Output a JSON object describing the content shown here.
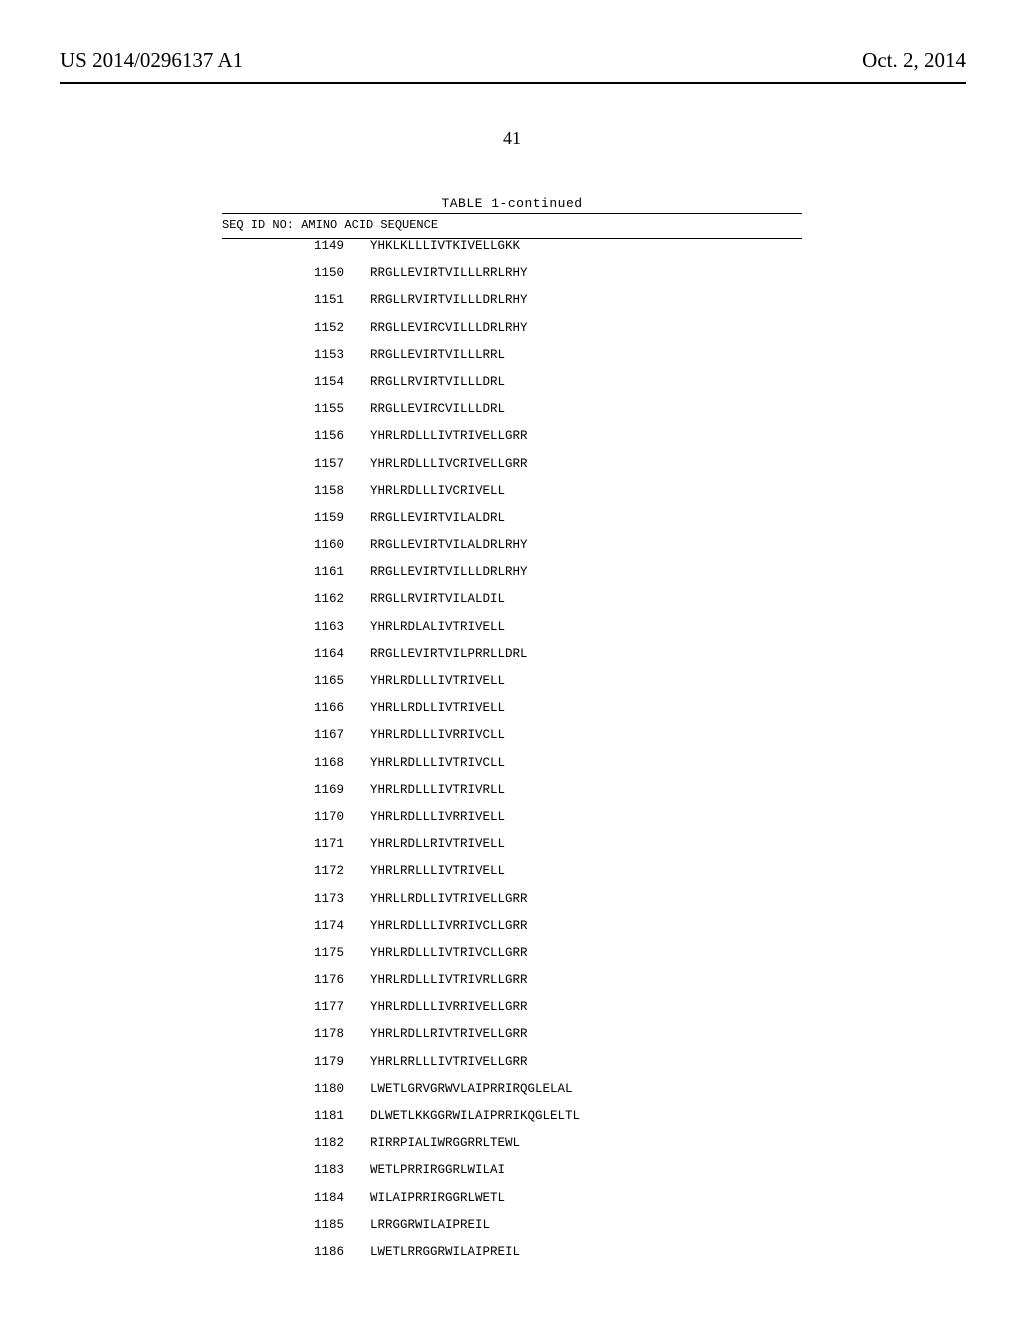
{
  "header": {
    "pub_number": "US 2014/0296137 A1",
    "pub_date": "Oct. 2, 2014"
  },
  "page_number": "41",
  "table": {
    "caption": "TABLE 1-continued",
    "column_header": "SEQ ID NO: AMINO ACID SEQUENCE",
    "rows": [
      {
        "id": "1149",
        "seq": "YHKLKLLLIVTKIVELLGKK"
      },
      {
        "id": "1150",
        "seq": "RRGLLEVIRTVILLLRRLRHY"
      },
      {
        "id": "1151",
        "seq": "RRGLLRVIRTVILLLDRLRHY"
      },
      {
        "id": "1152",
        "seq": "RRGLLEVIRCVILLLDRLRHY"
      },
      {
        "id": "1153",
        "seq": "RRGLLEVIRTVILLLRRL"
      },
      {
        "id": "1154",
        "seq": "RRGLLRVIRTVILLLDRL"
      },
      {
        "id": "1155",
        "seq": "RRGLLEVIRCVILLLDRL"
      },
      {
        "id": "1156",
        "seq": "YHRLRDLLLIVTRIVELLGRR"
      },
      {
        "id": "1157",
        "seq": "YHRLRDLLLIVCRIVELLGRR"
      },
      {
        "id": "1158",
        "seq": "YHRLRDLLLIVCRIVELL"
      },
      {
        "id": "1159",
        "seq": "RRGLLEVIRTVILALDRL"
      },
      {
        "id": "1160",
        "seq": "RRGLLEVIRTVILALDRLRHY"
      },
      {
        "id": "1161",
        "seq": "RRGLLEVIRTVILLLDRLRHY"
      },
      {
        "id": "1162",
        "seq": "RRGLLRVIRTVILALDIL"
      },
      {
        "id": "1163",
        "seq": "YHRLRDLALIVTRIVELL"
      },
      {
        "id": "1164",
        "seq": "RRGLLEVIRTVILPRRLLDRL"
      },
      {
        "id": "1165",
        "seq": "YHRLRDLLLIVTRIVELL"
      },
      {
        "id": "1166",
        "seq": "YHRLLRDLLIVTRIVELL"
      },
      {
        "id": "1167",
        "seq": "YHRLRDLLLIVRRIVCLL"
      },
      {
        "id": "1168",
        "seq": "YHRLRDLLLIVTRIVCLL"
      },
      {
        "id": "1169",
        "seq": "YHRLRDLLLIVTRIVRLL"
      },
      {
        "id": "1170",
        "seq": "YHRLRDLLLIVRRIVELL"
      },
      {
        "id": "1171",
        "seq": "YHRLRDLLRIVTRIVELL"
      },
      {
        "id": "1172",
        "seq": "YHRLRRLLLIVTRIVELL"
      },
      {
        "id": "1173",
        "seq": "YHRLLRDLLIVTRIVELLGRR"
      },
      {
        "id": "1174",
        "seq": "YHRLRDLLLIVRRIVCLLGRR"
      },
      {
        "id": "1175",
        "seq": "YHRLRDLLLIVTRIVCLLGRR"
      },
      {
        "id": "1176",
        "seq": "YHRLRDLLLIVTRIVRLLGRR"
      },
      {
        "id": "1177",
        "seq": "YHRLRDLLLIVRRIVELLGRR"
      },
      {
        "id": "1178",
        "seq": "YHRLRDLLRIVTRIVELLGRR"
      },
      {
        "id": "1179",
        "seq": "YHRLRRLLLIVTRIVELLGRR"
      },
      {
        "id": "1180",
        "seq": "LWETLGRVGRWVLAIPRRIRQGLELAL"
      },
      {
        "id": "1181",
        "seq": "DLWETLKKGGRWILAIPRRIKQGLELTL"
      },
      {
        "id": "1182",
        "seq": "RIRRPIALIWRGGRRLTEWL"
      },
      {
        "id": "1183",
        "seq": "WETLPRRIRGGRLWILAI"
      },
      {
        "id": "1184",
        "seq": "WILAIPRRIRGGRLWETL"
      },
      {
        "id": "1185",
        "seq": "LRRGGRWILAIPREIL"
      },
      {
        "id": "1186",
        "seq": "LWETLRRGGRWILAIPREIL"
      }
    ]
  }
}
